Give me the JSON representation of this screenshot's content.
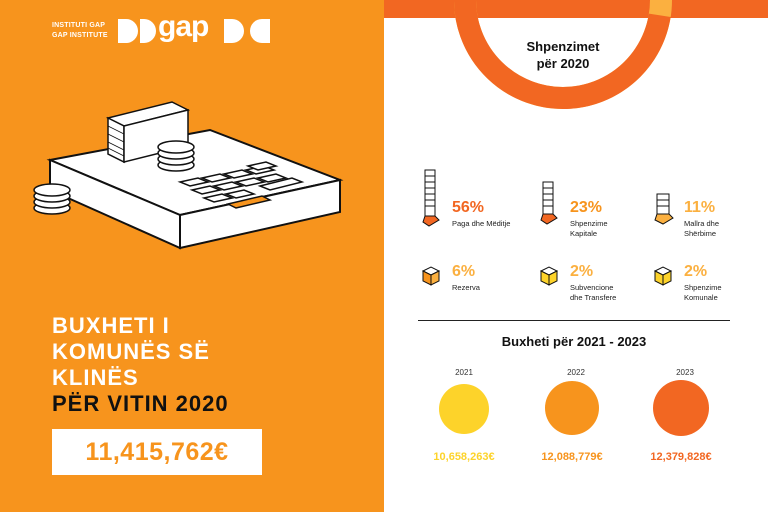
{
  "header": {
    "org_line_1": "INSTITUTI GAP",
    "org_line_2": "GAP INSTITUTE",
    "logo_text": "gap"
  },
  "headline": {
    "line1": "BUXHETI I",
    "line2": "KOMUNËS SË",
    "line3": "KLINËS",
    "line4": "PËR VITIN 2020"
  },
  "total_amount": "11,415,762€",
  "spending": {
    "title_line1": "Shpenzimet",
    "title_line2": "për 2020",
    "categories": [
      {
        "pct": "56%",
        "label1": "Paga dhe Mëditje",
        "label2": "",
        "share": 56
      },
      {
        "pct": "23%",
        "label1": "Shpenzime",
        "label2": "Kapitale",
        "share": 23
      },
      {
        "pct": "11%",
        "label1": "Mallra dhe",
        "label2": "Shërbime",
        "share": 11
      },
      {
        "pct": "6%",
        "label1": "Rezerva",
        "label2": "",
        "share": 6
      },
      {
        "pct": "2%",
        "label1": "Subvencione",
        "label2": "dhe Transfere",
        "share": 2
      },
      {
        "pct": "2%",
        "label1": "Shpenzime",
        "label2": "Komunale",
        "share": 2
      }
    ]
  },
  "budget": {
    "title": "Buxheti për 2021 - 2023",
    "years": [
      {
        "year": "2021",
        "value": "10,658,263€",
        "color": "#fdd32a"
      },
      {
        "year": "2022",
        "value": "12,088,779€",
        "color": "#f7941d"
      },
      {
        "year": "2023",
        "value": "12,379,828€",
        "color": "#f26722"
      }
    ]
  },
  "colors": {
    "orange": "#f7941d",
    "dark_orange": "#f26722",
    "yellow": "#fdd32a"
  }
}
